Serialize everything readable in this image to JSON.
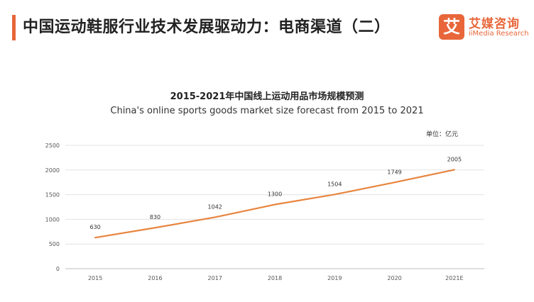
{
  "header": {
    "title": "中国运动鞋服行业技术发展驱动力：电商渠道（二）",
    "accent_color": "#E8663A"
  },
  "logo": {
    "mark": "艾",
    "name_cn": "艾媒咨询",
    "name_en": "iiMedia Research",
    "color": "#E8663A"
  },
  "chart_data": {
    "type": "line",
    "title": "2015-2021年中国线上运动用品市场规模预测",
    "subtitle": "China's online sports goods market size forecast from 2015 to 2021",
    "unit": "单位：亿元",
    "categories": [
      "2015",
      "2016",
      "2017",
      "2018",
      "2019",
      "2020",
      "2021E"
    ],
    "series": [
      {
        "values": [
          630,
          830,
          1042,
          1300,
          1504,
          1749,
          2005
        ],
        "color": "#E8853F"
      }
    ],
    "value_labels": [
      "630",
      "830",
      "1042",
      "1300",
      "1504",
      "1749",
      "2005"
    ],
    "ylim": [
      0,
      2500
    ],
    "yticks": [
      0,
      500,
      1000,
      1500,
      2000,
      2500
    ],
    "ytick_labels": [
      "0",
      "500",
      "1000",
      "1500",
      "2000",
      "2500"
    ],
    "grid": true,
    "legend": "none"
  }
}
